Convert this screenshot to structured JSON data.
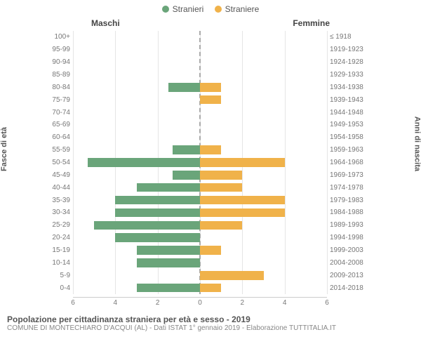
{
  "chart": {
    "type": "population-pyramid",
    "legend": [
      {
        "label": "Stranieri",
        "color": "#6aa57a"
      },
      {
        "label": "Straniere",
        "color": "#f0b24a"
      }
    ],
    "header_male": "Maschi",
    "header_female": "Femmine",
    "y_label_left": "Fasce di età",
    "y_label_right": "Anni di nascita",
    "x_axis": {
      "min": -6,
      "max": 6,
      "step": 2,
      "ticks_left": [
        "6",
        "4",
        "2",
        "0"
      ],
      "ticks_right": [
        "2",
        "4",
        "6"
      ]
    },
    "male_color": "#6aa57a",
    "female_color": "#f0b24a",
    "grid_color": "#e5e5e5",
    "center_color": "#aaaaaa",
    "bg": "#ffffff",
    "bar_height_pct": 70,
    "rows": [
      {
        "age": "100+",
        "birth": "≤ 1918",
        "m": 0.0,
        "f": 0.0
      },
      {
        "age": "95-99",
        "birth": "1919-1923",
        "m": 0.0,
        "f": 0.0
      },
      {
        "age": "90-94",
        "birth": "1924-1928",
        "m": 0.0,
        "f": 0.0
      },
      {
        "age": "85-89",
        "birth": "1929-1933",
        "m": 0.0,
        "f": 0.0
      },
      {
        "age": "80-84",
        "birth": "1934-1938",
        "m": 1.5,
        "f": 1.0
      },
      {
        "age": "75-79",
        "birth": "1939-1943",
        "m": 0.0,
        "f": 1.0
      },
      {
        "age": "70-74",
        "birth": "1944-1948",
        "m": 0.0,
        "f": 0.0
      },
      {
        "age": "65-69",
        "birth": "1949-1953",
        "m": 0.0,
        "f": 0.0
      },
      {
        "age": "60-64",
        "birth": "1954-1958",
        "m": 0.0,
        "f": 0.0
      },
      {
        "age": "55-59",
        "birth": "1959-1963",
        "m": 1.3,
        "f": 1.0
      },
      {
        "age": "50-54",
        "birth": "1964-1968",
        "m": 5.3,
        "f": 4.0
      },
      {
        "age": "45-49",
        "birth": "1969-1973",
        "m": 1.3,
        "f": 2.0
      },
      {
        "age": "40-44",
        "birth": "1974-1978",
        "m": 3.0,
        "f": 2.0
      },
      {
        "age": "35-39",
        "birth": "1979-1983",
        "m": 4.0,
        "f": 4.0
      },
      {
        "age": "30-34",
        "birth": "1984-1988",
        "m": 4.0,
        "f": 4.0
      },
      {
        "age": "25-29",
        "birth": "1989-1993",
        "m": 5.0,
        "f": 2.0
      },
      {
        "age": "20-24",
        "birth": "1994-1998",
        "m": 4.0,
        "f": 0.0
      },
      {
        "age": "15-19",
        "birth": "1999-2003",
        "m": 3.0,
        "f": 1.0
      },
      {
        "age": "10-14",
        "birth": "2004-2008",
        "m": 3.0,
        "f": 0.0
      },
      {
        "age": "5-9",
        "birth": "2009-2013",
        "m": 0.0,
        "f": 3.0
      },
      {
        "age": "0-4",
        "birth": "2014-2018",
        "m": 3.0,
        "f": 1.0
      }
    ],
    "footer_title": "Popolazione per cittadinanza straniera per età e sesso - 2019",
    "footer_sub": "COMUNE DI MONTECHIARO D'ACQUI (AL) - Dati ISTAT 1° gennaio 2019 - Elaborazione TUTTITALIA.IT"
  }
}
